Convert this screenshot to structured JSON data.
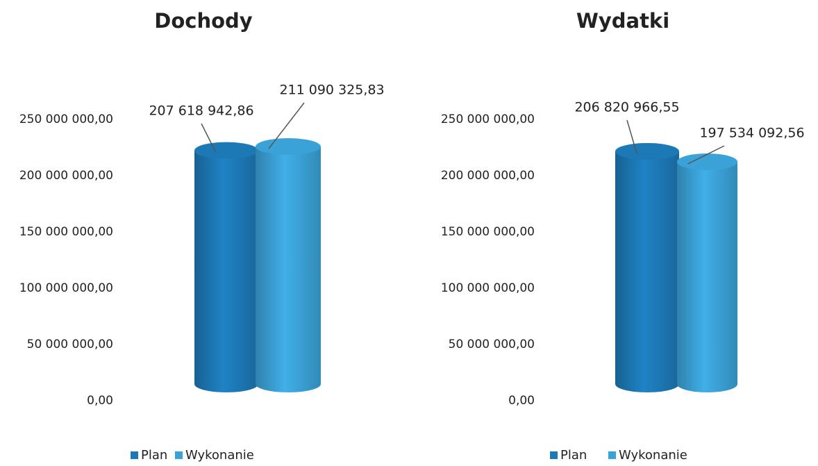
{
  "chart_data": [
    {
      "type": "bar",
      "title": "Dochody",
      "categories": [
        null
      ],
      "series": [
        {
          "name": "Plan",
          "color": "#1d79b6",
          "values": [
            207618942.86
          ],
          "value_labels": [
            "207 618 942,86"
          ]
        },
        {
          "name": "Wykonanie",
          "color": "#3ba2d8",
          "values": [
            211090325.83
          ],
          "value_labels": [
            "211 090 325,83"
          ]
        }
      ],
      "ylim": [
        0,
        250000000
      ],
      "yticks": [
        {
          "value": 0,
          "label": "0,00"
        },
        {
          "value": 50000000,
          "label": "50 000 000,00"
        },
        {
          "value": 100000000,
          "label": "100 000 000,00"
        },
        {
          "value": 150000000,
          "label": "150 000 000,00"
        },
        {
          "value": 200000000,
          "label": "200 000 000,00"
        },
        {
          "value": 250000000,
          "label": "250 000 000,00"
        }
      ],
      "legend": "bottom"
    },
    {
      "type": "bar",
      "title": "Wydatki",
      "categories": [
        null
      ],
      "series": [
        {
          "name": "Plan",
          "color": "#1d79b6",
          "values": [
            206820966.55
          ],
          "value_labels": [
            "206 820 966,55"
          ]
        },
        {
          "name": "Wykonanie",
          "color": "#3ba2d8",
          "values": [
            197534092.56
          ],
          "value_labels": [
            "197 534 092,56"
          ]
        }
      ],
      "ylim": [
        0,
        250000000
      ],
      "yticks": [
        {
          "value": 0,
          "label": "0,00"
        },
        {
          "value": 50000000,
          "label": "50 000 000,00"
        },
        {
          "value": 100000000,
          "label": "100 000 000,00"
        },
        {
          "value": 150000000,
          "label": "150 000 000,00"
        },
        {
          "value": 200000000,
          "label": "200 000 000,00"
        },
        {
          "value": 250000000,
          "label": "250 000 000,00"
        }
      ],
      "legend": "bottom"
    }
  ]
}
